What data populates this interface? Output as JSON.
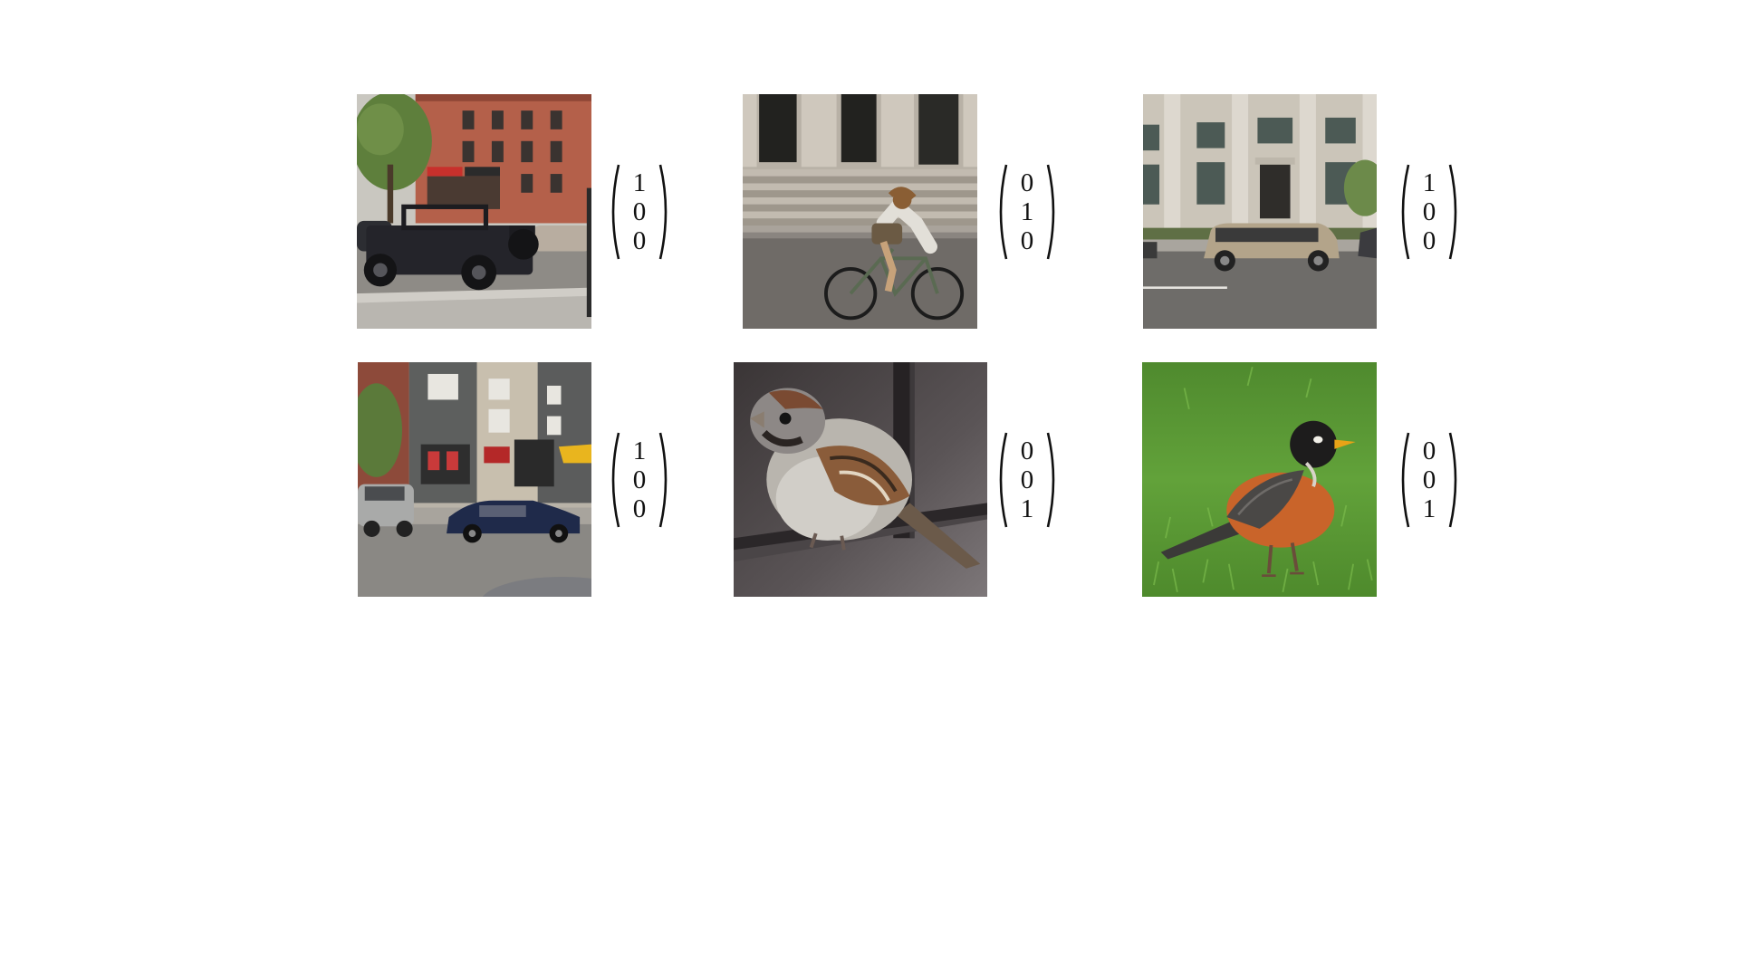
{
  "examples": [
    {
      "subject": "jeep-street-scene",
      "label_vector": [
        "1",
        "0",
        "0"
      ]
    },
    {
      "subject": "cyclist-on-road",
      "label_vector": [
        "0",
        "1",
        "0"
      ]
    },
    {
      "subject": "minivan-at-building",
      "label_vector": [
        "1",
        "0",
        "0"
      ]
    },
    {
      "subject": "cars-on-city-street",
      "label_vector": [
        "1",
        "0",
        "0"
      ]
    },
    {
      "subject": "sparrow-on-rail",
      "label_vector": [
        "0",
        "0",
        "1"
      ]
    },
    {
      "subject": "robin-on-grass",
      "label_vector": [
        "0",
        "0",
        "1"
      ]
    }
  ],
  "colors": {
    "background": "#ffffff",
    "text": "#111111"
  }
}
